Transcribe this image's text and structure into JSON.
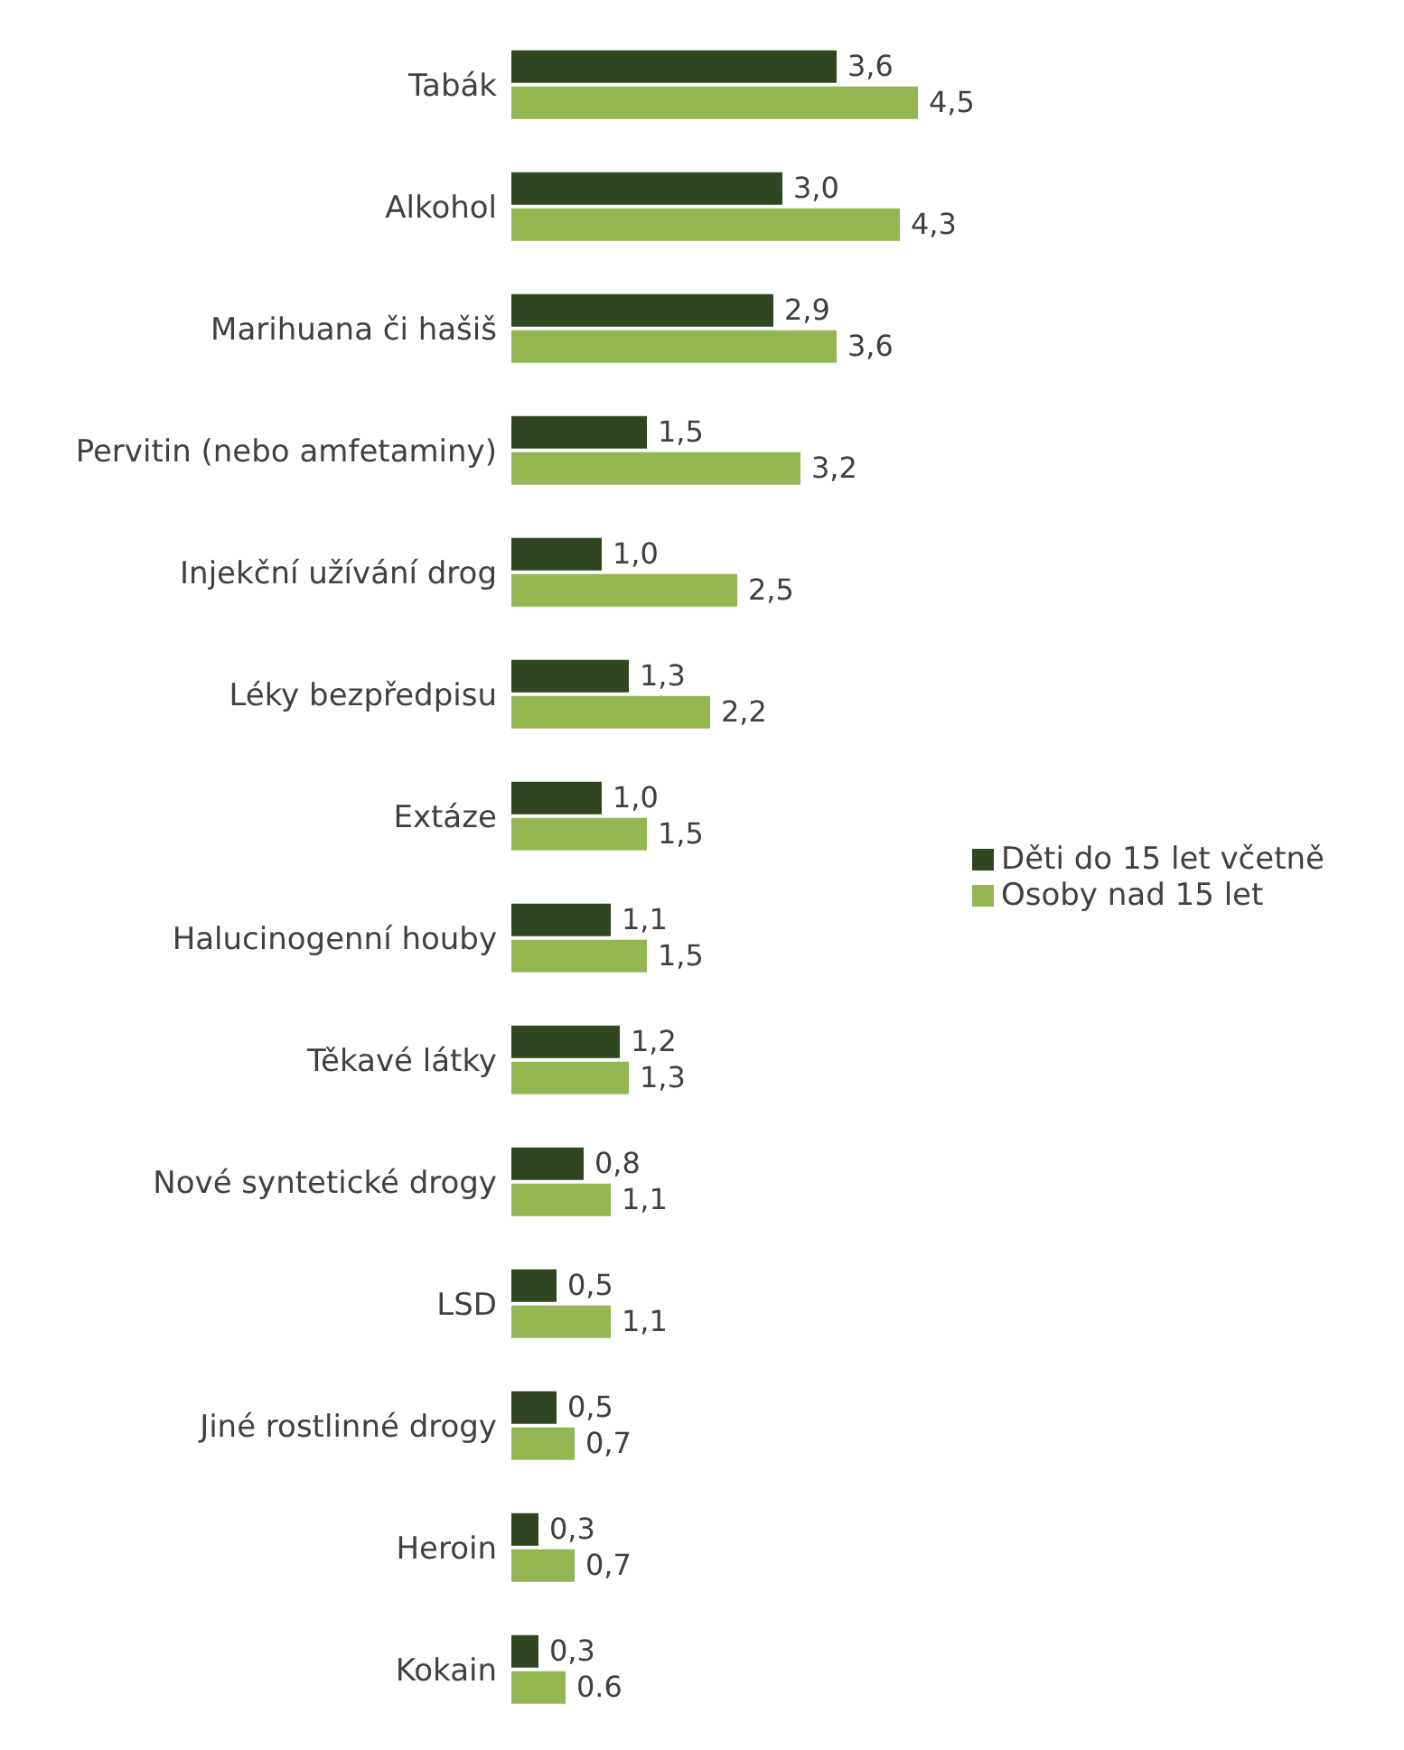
{
  "chart_data": {
    "type": "bar",
    "orientation": "horizontal",
    "categories": [
      "Tabák",
      "Alkohol",
      "Marihuana či hašiš",
      "Pervitin (nebo amfetaminy)",
      "Injekční užívání drog",
      "Léky bezpředpisu",
      "Extáze",
      "Halucinogenní houby",
      "Těkavé látky",
      "Nové syntetické drogy",
      "LSD",
      "Jiné rostlinné drogy",
      "Heroin",
      "Kokain"
    ],
    "series": [
      {
        "name": "Děti do 15 let včetně",
        "color": "#2f4621",
        "values": [
          3.6,
          3.0,
          2.9,
          1.5,
          1.0,
          1.3,
          1.0,
          1.1,
          1.2,
          0.8,
          0.5,
          0.5,
          0.3,
          0.3
        ],
        "value_labels": [
          "3,6",
          "3,0",
          "2,9",
          "1,5",
          "1,0",
          "1,3",
          "1,0",
          "1,1",
          "1,2",
          "0,8",
          "0,5",
          "0,5",
          "0,3",
          "0,3"
        ]
      },
      {
        "name": "Osoby nad 15 let",
        "color": "#93b552",
        "values": [
          4.5,
          4.3,
          3.6,
          3.2,
          2.5,
          2.2,
          1.5,
          1.5,
          1.3,
          1.1,
          1.1,
          0.7,
          0.7,
          0.6
        ],
        "value_labels": [
          "4,5",
          "4,3",
          "3,6",
          "3,2",
          "2,5",
          "2,2",
          "1,5",
          "1,5",
          "1,3",
          "1,1",
          "1,1",
          "0,7",
          "0,7",
          "0.6"
        ]
      }
    ],
    "legend": "right",
    "grid": false
  }
}
